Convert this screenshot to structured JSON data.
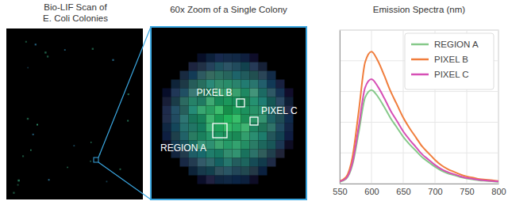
{
  "scan": {
    "title": [
      "Bio-LIF Scan of",
      "E. Coli Colonies"
    ]
  },
  "zoom": {
    "title": "60x Zoom of a Single Colony",
    "labels": [
      "PIXEL B",
      "PIXEL C",
      "REGION A"
    ]
  },
  "chart_data": {
    "type": "line",
    "title": "Emission Spectra (nm)",
    "x": [
      550,
      560,
      570,
      580,
      590,
      600,
      610,
      620,
      630,
      640,
      650,
      660,
      670,
      680,
      690,
      700,
      710,
      720,
      730,
      740,
      750,
      760,
      770,
      780,
      790,
      800
    ],
    "series": [
      {
        "name": "REGION A",
        "color": "#86c98a",
        "values": [
          1.2,
          3.1,
          12.2,
          33.6,
          56.1,
          61,
          56.7,
          50,
          42.7,
          36.6,
          30.5,
          25.6,
          21.4,
          17.1,
          14,
          11,
          8.5,
          6.7,
          5.5,
          4.3,
          3.4,
          2.7,
          2.1,
          1.8,
          1.5,
          1.2
        ]
      },
      {
        "name": "PIXEL B",
        "color": "#f07d3c",
        "values": [
          1.7,
          4.3,
          17.2,
          47.3,
          79.1,
          86,
          80,
          70.5,
          60.2,
          51.6,
          43,
          36.1,
          30.1,
          24.1,
          19.8,
          15.5,
          12,
          9.5,
          7.7,
          6,
          4.7,
          3.9,
          3,
          2.6,
          2.2,
          1.7
        ]
      },
      {
        "name": "PIXEL C",
        "color": "#d64fb5",
        "values": [
          1.4,
          3.4,
          13.6,
          37.4,
          62.6,
          68,
          63.2,
          55.8,
          47.6,
          40.8,
          34,
          28.6,
          23.8,
          19,
          15.6,
          12.2,
          9.5,
          7.5,
          6.1,
          4.8,
          3.7,
          3.1,
          2.4,
          2,
          1.7,
          1.4
        ]
      }
    ],
    "xlim": [
      550,
      800
    ],
    "xticks": [
      550,
      600,
      650,
      700,
      750,
      800
    ],
    "ylim": [
      0,
      100
    ],
    "yticks": [
      0,
      20,
      40,
      60,
      80,
      100
    ],
    "grid": true,
    "legend": "upper right",
    "tick_labels": "x"
  }
}
